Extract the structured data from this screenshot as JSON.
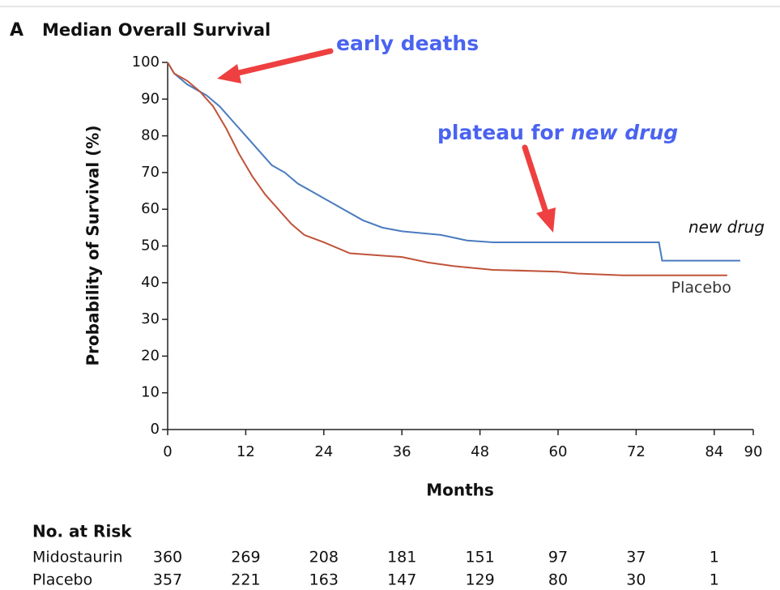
{
  "chart_data": {
    "type": "line",
    "panel_label": "A",
    "title": "Median Overall Survival",
    "x_label": "Months",
    "y_label": "Probability of Survival (%)",
    "xlim": [
      0,
      90
    ],
    "ylim": [
      0,
      100
    ],
    "xticks": [
      0,
      12,
      24,
      36,
      48,
      60,
      72,
      84,
      90
    ],
    "yticks": [
      0,
      10,
      20,
      30,
      40,
      50,
      60,
      70,
      80,
      90,
      100
    ],
    "series": [
      {
        "name": "new drug",
        "color": "#4a7bbf",
        "x": [
          0,
          1,
          3,
          6,
          8,
          10,
          12,
          14,
          16,
          18,
          20,
          22,
          24,
          27,
          30,
          33,
          36,
          42,
          46,
          50,
          60,
          70,
          75.5,
          76,
          88
        ],
        "values": [
          100,
          97,
          94,
          91,
          88,
          84,
          80,
          76,
          72,
          70,
          67,
          65,
          63,
          60,
          57,
          55,
          54,
          53,
          51.5,
          51,
          51,
          51,
          51,
          46,
          46
        ]
      },
      {
        "name": "Placebo",
        "color": "#c0533a",
        "x": [
          0,
          1,
          3,
          5,
          7,
          9,
          11,
          13,
          15,
          17,
          19,
          21,
          24,
          28,
          32,
          36,
          40,
          44,
          50,
          60,
          63,
          70,
          86
        ],
        "values": [
          100,
          97,
          95,
          92,
          88,
          82,
          75,
          69,
          64,
          60,
          56,
          53,
          51,
          48,
          47.5,
          47,
          45.5,
          44.5,
          43.5,
          43,
          42.5,
          42,
          42
        ]
      }
    ],
    "annotations": [
      {
        "text": "early deaths"
      },
      {
        "text": "plateau for ",
        "emphasis": "new drug"
      }
    ],
    "risk_table": {
      "title": "No. at Risk",
      "months": [
        0,
        12,
        24,
        36,
        48,
        60,
        72,
        84
      ],
      "rows": [
        {
          "label": "Midostaurin",
          "values": [
            360,
            269,
            208,
            181,
            151,
            97,
            37,
            1
          ]
        },
        {
          "label": "Placebo",
          "values": [
            357,
            221,
            163,
            147,
            129,
            80,
            30,
            1
          ]
        }
      ]
    }
  }
}
